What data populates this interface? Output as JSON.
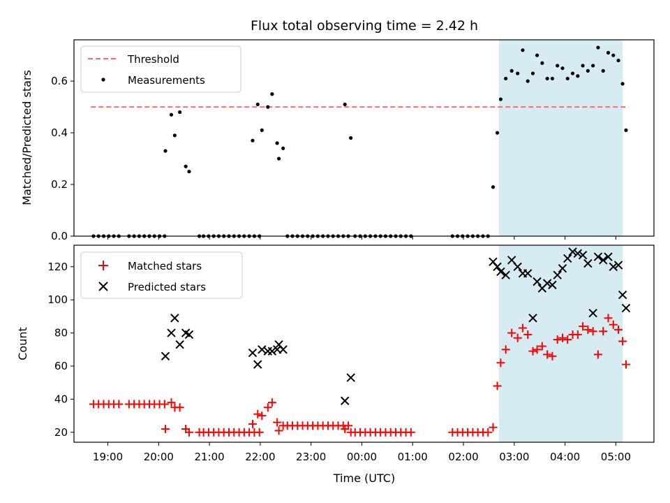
{
  "chart_data": [
    {
      "type": "scatter",
      "title": "Flux total observing time = 2.42 h",
      "xlabel": "",
      "ylabel": "Matched/Predicted stars",
      "ylim": [
        0,
        0.76
      ],
      "yticks": [
        0.0,
        0.2,
        0.4,
        0.6
      ],
      "ytick_labels": [
        "0.0",
        "0.2",
        "0.4",
        "0.6"
      ],
      "shaded_interval": {
        "start": "02:42",
        "end": "05:08",
        "color": "#add8e6"
      },
      "legend": {
        "position": "top-left",
        "entries": [
          "Threshold",
          "Measurements"
        ]
      },
      "series": [
        {
          "name": "Threshold",
          "kind": "dashed-line",
          "color": "#ff6b6b",
          "x": [
            "18:40",
            "05:15"
          ],
          "values": [
            0.5,
            0.5
          ]
        },
        {
          "name": "Measurements",
          "kind": "points",
          "color": "#000000",
          "x": [
            "18:43",
            "18:49",
            "18:55",
            "19:01",
            "19:07",
            "19:13",
            "19:25",
            "19:31",
            "19:37",
            "19:43",
            "19:49",
            "19:55",
            "20:01",
            "20:07",
            "20:08",
            "20:15",
            "20:19",
            "20:25",
            "20:32",
            "20:36",
            "20:48",
            "20:53",
            "20:59",
            "21:05",
            "21:11",
            "21:17",
            "21:23",
            "21:29",
            "21:35",
            "21:41",
            "21:47",
            "21:53",
            "21:59",
            "21:51",
            "21:57",
            "22:02",
            "22:09",
            "22:14",
            "22:20",
            "22:22",
            "22:27",
            "22:32",
            "22:38",
            "22:44",
            "22:50",
            "22:56",
            "23:02",
            "23:08",
            "23:14",
            "23:20",
            "23:26",
            "23:32",
            "23:38",
            "23:44",
            "23:40",
            "23:47",
            "23:52",
            "23:58",
            "00:04",
            "00:10",
            "00:16",
            "00:22",
            "00:28",
            "00:34",
            "00:40",
            "00:46",
            "00:52",
            "00:58",
            "01:47",
            "01:53",
            "01:59",
            "02:05",
            "02:11",
            "02:17",
            "02:23",
            "02:29",
            "02:35",
            "02:40",
            "02:44",
            "02:50",
            "02:57",
            "03:04",
            "03:10",
            "03:16",
            "03:22",
            "03:27",
            "03:33",
            "03:39",
            "03:45",
            "03:51",
            "03:57",
            "04:03",
            "04:09",
            "04:15",
            "04:21",
            "04:27",
            "04:33",
            "04:39",
            "04:45",
            "04:51",
            "04:57",
            "05:03",
            "05:08",
            "05:12"
          ],
          "values": [
            0,
            0,
            0,
            0,
            0,
            0,
            0,
            0,
            0,
            0,
            0,
            0,
            0,
            0,
            0.33,
            0.47,
            0.39,
            0.48,
            0.27,
            0.25,
            0,
            0,
            0,
            0,
            0,
            0,
            0,
            0,
            0,
            0,
            0,
            0,
            0,
            0.37,
            0.51,
            0.41,
            0.5,
            0.55,
            0.36,
            0.3,
            0.34,
            0,
            0,
            0,
            0,
            0,
            0,
            0,
            0,
            0,
            0,
            0,
            0,
            0,
            0.51,
            0.38,
            0,
            0,
            0,
            0,
            0,
            0,
            0,
            0,
            0,
            0,
            0,
            0,
            0,
            0,
            0,
            0,
            0,
            0,
            0,
            0,
            0.19,
            0.4,
            0.53,
            0.61,
            0.64,
            0.63,
            0.72,
            0.6,
            0.63,
            0.7,
            0.67,
            0.61,
            0.61,
            0.66,
            0.65,
            0.61,
            0.63,
            0.62,
            0.66,
            0.64,
            0.66,
            0.73,
            0.64,
            0.71,
            0.7,
            0.68,
            0.59,
            0.41
          ]
        }
      ]
    },
    {
      "type": "scatter",
      "title": "",
      "xlabel": "Time (UTC)",
      "ylabel": "Count",
      "ylim": [
        14,
        133
      ],
      "yticks": [
        20,
        40,
        60,
        80,
        100,
        120
      ],
      "ytick_labels": [
        "20",
        "40",
        "60",
        "80",
        "100",
        "120"
      ],
      "xticks": [
        "19:00",
        "20:00",
        "21:00",
        "22:00",
        "23:00",
        "00:00",
        "01:00",
        "02:00",
        "03:00",
        "04:00",
        "05:00"
      ],
      "xlim": [
        "18:20",
        "05:45"
      ],
      "shaded_interval": {
        "start": "02:42",
        "end": "05:08",
        "color": "#add8e6"
      },
      "legend": {
        "position": "top-left",
        "entries": [
          "Matched stars",
          "Predicted stars"
        ]
      },
      "series": [
        {
          "name": "Matched stars",
          "marker": "plus",
          "color": "#ff0000",
          "x": [
            "18:43",
            "18:49",
            "18:55",
            "19:01",
            "19:07",
            "19:13",
            "19:25",
            "19:31",
            "19:37",
            "19:43",
            "19:49",
            "19:55",
            "20:01",
            "20:07",
            "20:08",
            "20:15",
            "20:19",
            "20:25",
            "20:32",
            "20:36",
            "20:48",
            "20:53",
            "20:59",
            "21:05",
            "21:11",
            "21:17",
            "21:23",
            "21:29",
            "21:35",
            "21:41",
            "21:47",
            "21:53",
            "21:59",
            "21:51",
            "21:57",
            "22:02",
            "22:09",
            "22:14",
            "22:20",
            "22:22",
            "22:27",
            "22:32",
            "22:38",
            "22:44",
            "22:50",
            "22:56",
            "23:02",
            "23:08",
            "23:14",
            "23:20",
            "23:26",
            "23:32",
            "23:38",
            "23:44",
            "23:40",
            "23:47",
            "23:52",
            "23:58",
            "00:04",
            "00:10",
            "00:16",
            "00:22",
            "00:28",
            "00:34",
            "00:40",
            "00:46",
            "00:52",
            "00:58",
            "01:47",
            "01:53",
            "01:59",
            "02:05",
            "02:11",
            "02:17",
            "02:23",
            "02:29",
            "02:35",
            "02:40",
            "02:44",
            "02:50",
            "02:57",
            "03:04",
            "03:10",
            "03:16",
            "03:22",
            "03:27",
            "03:33",
            "03:39",
            "03:45",
            "03:51",
            "03:57",
            "04:03",
            "04:09",
            "04:15",
            "04:21",
            "04:27",
            "04:33",
            "04:39",
            "04:45",
            "04:51",
            "04:57",
            "05:03",
            "05:08",
            "05:12"
          ],
          "values": [
            37,
            37,
            37,
            37,
            37,
            37,
            37,
            37,
            37,
            37,
            37,
            37,
            37,
            37,
            22,
            38,
            35,
            35,
            22,
            20,
            20,
            20,
            20,
            20,
            20,
            20,
            20,
            20,
            20,
            20,
            20,
            20,
            20,
            25,
            31,
            30,
            35,
            38,
            26,
            21,
            24,
            24,
            24,
            24,
            24,
            24,
            24,
            24,
            24,
            24,
            24,
            24,
            24,
            24,
            22,
            20,
            20,
            20,
            20,
            20,
            20,
            20,
            20,
            20,
            20,
            20,
            20,
            20,
            20,
            20,
            20,
            20,
            20,
            20,
            20,
            20,
            23,
            48,
            62,
            70,
            80,
            77,
            83,
            79,
            69,
            70,
            72,
            67,
            66,
            76,
            77,
            76,
            79,
            79,
            84,
            82,
            81,
            67,
            81,
            89,
            85,
            82,
            75,
            61
          ]
        },
        {
          "name": "Predicted stars",
          "marker": "x",
          "color": "#000000",
          "x": [
            "20:08",
            "20:15",
            "20:19",
            "20:25",
            "20:32",
            "20:36",
            "21:51",
            "21:57",
            "22:02",
            "22:09",
            "22:14",
            "22:20",
            "22:22",
            "22:27",
            "23:40",
            "23:47",
            "02:35",
            "02:40",
            "02:44",
            "02:50",
            "02:57",
            "03:04",
            "03:10",
            "03:16",
            "03:22",
            "03:27",
            "03:33",
            "03:39",
            "03:45",
            "03:51",
            "03:57",
            "04:03",
            "04:09",
            "04:15",
            "04:21",
            "04:27",
            "04:33",
            "04:39",
            "04:45",
            "04:51",
            "04:57",
            "05:03",
            "05:08",
            "05:12"
          ],
          "values": [
            66,
            80,
            89,
            73,
            80,
            79,
            68,
            61,
            70,
            69,
            69,
            70,
            73,
            70,
            39,
            53,
            123,
            120,
            117,
            115,
            124,
            120,
            116,
            116,
            89,
            111,
            107,
            110,
            109,
            115,
            119,
            125,
            129,
            128,
            127,
            122,
            92,
            126,
            124,
            126,
            120,
            121,
            103,
            95
          ]
        }
      ]
    }
  ]
}
